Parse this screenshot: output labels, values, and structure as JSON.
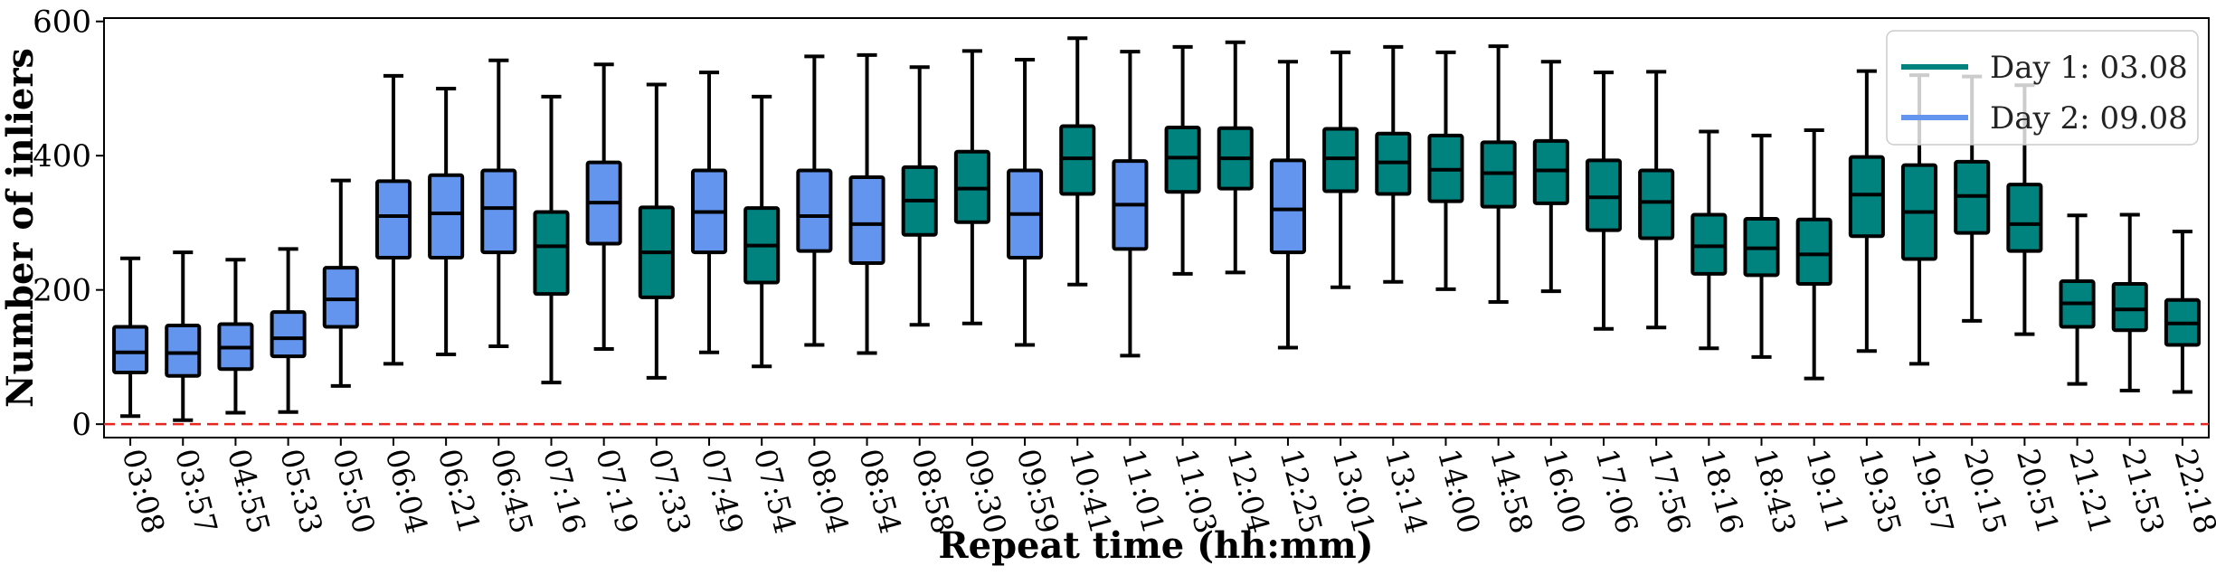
{
  "chart_data": {
    "type": "box",
    "xlabel": "Repeat time (hh:mm)",
    "ylabel": "Number of inliers",
    "ylim": [
      -20,
      605
    ],
    "yticks": [
      0,
      200,
      400,
      600
    ],
    "reference_line": {
      "y": 0,
      "style": "dashed",
      "color": "#e8251f"
    },
    "legend": {
      "position": "top-right",
      "entries": [
        {
          "label": "Day 1: 03.08",
          "color": "#00827f"
        },
        {
          "label": "Day 2: 09.08",
          "color": "#6395ee"
        }
      ]
    },
    "series_colors": {
      "1": "#00827f",
      "2": "#6395ee"
    },
    "boxes": [
      {
        "label": "03:08",
        "day": 2,
        "whislo": 12,
        "q1": 77,
        "med": 107,
        "q3": 145,
        "whishi": 247
      },
      {
        "label": "03:57",
        "day": 2,
        "whislo": 6,
        "q1": 72,
        "med": 106,
        "q3": 147,
        "whishi": 256
      },
      {
        "label": "04:55",
        "day": 2,
        "whislo": 17,
        "q1": 82,
        "med": 114,
        "q3": 149,
        "whishi": 245
      },
      {
        "label": "05:33",
        "day": 2,
        "whislo": 18,
        "q1": 101,
        "med": 128,
        "q3": 167,
        "whishi": 261
      },
      {
        "label": "05:50",
        "day": 2,
        "whislo": 57,
        "q1": 145,
        "med": 186,
        "q3": 233,
        "whishi": 363
      },
      {
        "label": "06:04",
        "day": 2,
        "whislo": 90,
        "q1": 248,
        "med": 310,
        "q3": 362,
        "whishi": 519
      },
      {
        "label": "06:21",
        "day": 2,
        "whislo": 104,
        "q1": 248,
        "med": 314,
        "q3": 371,
        "whishi": 500
      },
      {
        "label": "06:45",
        "day": 2,
        "whislo": 116,
        "q1": 256,
        "med": 322,
        "q3": 378,
        "whishi": 542
      },
      {
        "label": "07:16",
        "day": 1,
        "whislo": 62,
        "q1": 194,
        "med": 265,
        "q3": 316,
        "whishi": 488
      },
      {
        "label": "07:19",
        "day": 2,
        "whislo": 112,
        "q1": 269,
        "med": 330,
        "q3": 390,
        "whishi": 536
      },
      {
        "label": "07:33",
        "day": 1,
        "whislo": 69,
        "q1": 189,
        "med": 256,
        "q3": 323,
        "whishi": 506
      },
      {
        "label": "07:49",
        "day": 2,
        "whislo": 107,
        "q1": 256,
        "med": 316,
        "q3": 378,
        "whishi": 524
      },
      {
        "label": "07:54",
        "day": 1,
        "whislo": 86,
        "q1": 211,
        "med": 266,
        "q3": 322,
        "whishi": 488
      },
      {
        "label": "08:04",
        "day": 2,
        "whislo": 118,
        "q1": 258,
        "med": 310,
        "q3": 378,
        "whishi": 548
      },
      {
        "label": "08:54",
        "day": 2,
        "whislo": 106,
        "q1": 240,
        "med": 298,
        "q3": 368,
        "whishi": 550
      },
      {
        "label": "08:58",
        "day": 1,
        "whislo": 148,
        "q1": 282,
        "med": 333,
        "q3": 383,
        "whishi": 532
      },
      {
        "label": "09:30",
        "day": 1,
        "whislo": 150,
        "q1": 301,
        "med": 351,
        "q3": 406,
        "whishi": 556
      },
      {
        "label": "09:59",
        "day": 2,
        "whislo": 118,
        "q1": 248,
        "med": 313,
        "q3": 378,
        "whishi": 543
      },
      {
        "label": "10:41",
        "day": 1,
        "whislo": 208,
        "q1": 343,
        "med": 396,
        "q3": 444,
        "whishi": 575
      },
      {
        "label": "11:01",
        "day": 2,
        "whislo": 102,
        "q1": 261,
        "med": 327,
        "q3": 392,
        "whishi": 555
      },
      {
        "label": "11:03",
        "day": 1,
        "whislo": 224,
        "q1": 346,
        "med": 397,
        "q3": 442,
        "whishi": 562
      },
      {
        "label": "12:04",
        "day": 1,
        "whislo": 226,
        "q1": 351,
        "med": 396,
        "q3": 441,
        "whishi": 569
      },
      {
        "label": "12:25",
        "day": 2,
        "whislo": 114,
        "q1": 256,
        "med": 320,
        "q3": 393,
        "whishi": 540
      },
      {
        "label": "13:01",
        "day": 1,
        "whislo": 204,
        "q1": 347,
        "med": 396,
        "q3": 440,
        "whishi": 554
      },
      {
        "label": "13:14",
        "day": 1,
        "whislo": 212,
        "q1": 343,
        "med": 390,
        "q3": 433,
        "whishi": 562
      },
      {
        "label": "14:00",
        "day": 1,
        "whislo": 201,
        "q1": 332,
        "med": 379,
        "q3": 430,
        "whishi": 554
      },
      {
        "label": "14:58",
        "day": 1,
        "whislo": 182,
        "q1": 324,
        "med": 374,
        "q3": 420,
        "whishi": 563
      },
      {
        "label": "16:00",
        "day": 1,
        "whislo": 198,
        "q1": 329,
        "med": 378,
        "q3": 422,
        "whishi": 540
      },
      {
        "label": "17:06",
        "day": 1,
        "whislo": 142,
        "q1": 289,
        "med": 338,
        "q3": 393,
        "whishi": 524
      },
      {
        "label": "17:56",
        "day": 1,
        "whislo": 144,
        "q1": 277,
        "med": 331,
        "q3": 378,
        "whishi": 525
      },
      {
        "label": "18:16",
        "day": 1,
        "whislo": 113,
        "q1": 224,
        "med": 265,
        "q3": 312,
        "whishi": 436
      },
      {
        "label": "18:43",
        "day": 1,
        "whislo": 100,
        "q1": 222,
        "med": 262,
        "q3": 306,
        "whishi": 430
      },
      {
        "label": "19:11",
        "day": 1,
        "whislo": 68,
        "q1": 209,
        "med": 253,
        "q3": 305,
        "whishi": 438
      },
      {
        "label": "19:35",
        "day": 1,
        "whislo": 109,
        "q1": 280,
        "med": 342,
        "q3": 398,
        "whishi": 526
      },
      {
        "label": "19:57",
        "day": 1,
        "whislo": 90,
        "q1": 246,
        "med": 316,
        "q3": 386,
        "whishi": 520
      },
      {
        "label": "20:15",
        "day": 1,
        "whislo": 154,
        "q1": 285,
        "med": 340,
        "q3": 391,
        "whishi": 518
      },
      {
        "label": "20:51",
        "day": 1,
        "whislo": 134,
        "q1": 258,
        "med": 298,
        "q3": 357,
        "whishi": 505
      },
      {
        "label": "21:21",
        "day": 1,
        "whislo": 60,
        "q1": 145,
        "med": 180,
        "q3": 213,
        "whishi": 311
      },
      {
        "label": "21:53",
        "day": 1,
        "whislo": 50,
        "q1": 140,
        "med": 171,
        "q3": 209,
        "whishi": 312
      },
      {
        "label": "22:18",
        "day": 1,
        "whislo": 48,
        "q1": 118,
        "med": 150,
        "q3": 185,
        "whishi": 287
      }
    ]
  }
}
